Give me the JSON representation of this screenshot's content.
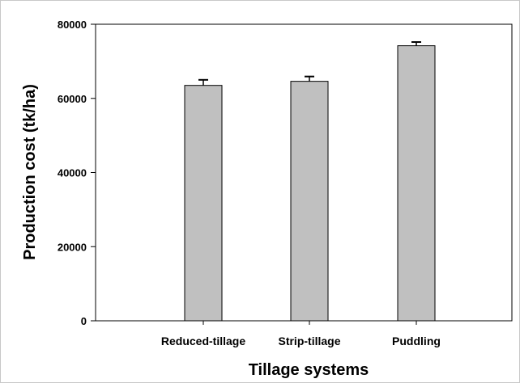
{
  "chart_data": {
    "type": "bar",
    "title": "",
    "xlabel": "Tillage systems",
    "ylabel": "Production cost (tk/ha)",
    "categories": [
      "Reduced-tillage",
      "Strip-tillage",
      "Puddling"
    ],
    "values": [
      63500,
      64600,
      74200
    ],
    "errors": [
      1500,
      1300,
      1000
    ],
    "ylim": [
      0,
      80000
    ],
    "yticks": [
      0,
      20000,
      40000,
      60000,
      80000
    ],
    "bar_color": "#c0c0c0",
    "grid": false,
    "legend": "none"
  }
}
